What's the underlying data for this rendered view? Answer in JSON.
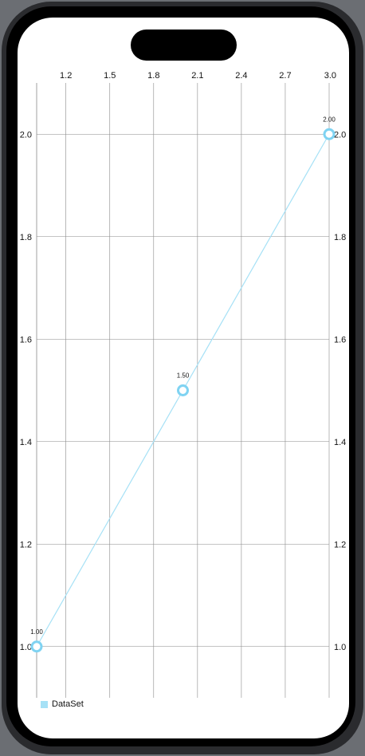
{
  "chart_data": {
    "type": "line",
    "x": [
      1.0,
      2.0,
      3.0
    ],
    "series": [
      {
        "name": "DataSet",
        "values": [
          1.0,
          1.5,
          2.0
        ],
        "value_labels": [
          "1.00",
          "1.50",
          "2.00"
        ]
      }
    ],
    "xlim": [
      1.0,
      3.0
    ],
    "ylim": [
      0.9,
      2.1
    ],
    "x_ticks": [
      1.2,
      1.5,
      1.8,
      2.1,
      2.4,
      2.7,
      3.0
    ],
    "x_tick_labels": [
      "1.2",
      "1.5",
      "1.8",
      "2.1",
      "2.4",
      "2.7",
      "3.0"
    ],
    "y_ticks": [
      1.0,
      1.2,
      1.4,
      1.6,
      1.8,
      2.0
    ],
    "y_tick_labels": [
      "1.0",
      "1.2",
      "1.4",
      "1.6",
      "1.8",
      "2.0"
    ],
    "x_axis_position": "top",
    "y_axis_labels": "left and right",
    "grid": true,
    "legend_position": "bottom-left",
    "title": "",
    "xlabel": "",
    "ylabel": ""
  },
  "colors": {
    "series": "#a6e1f6",
    "marker": "#7fd3f2",
    "grid": "#8a8a8a",
    "text": "#111111"
  }
}
